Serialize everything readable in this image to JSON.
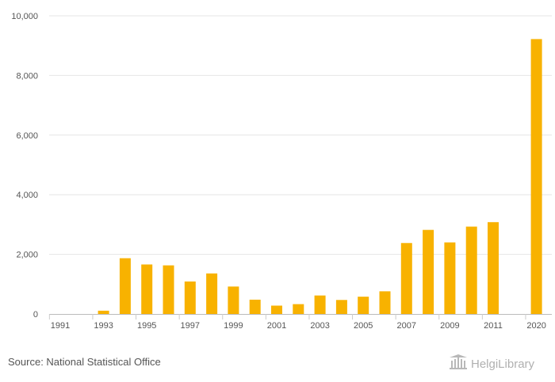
{
  "chart_data": {
    "type": "bar",
    "title": "",
    "xlabel": "",
    "ylabel": "",
    "ylim": [
      0,
      10000
    ],
    "y_ticks": [
      0,
      2000,
      4000,
      6000,
      8000,
      10000
    ],
    "y_tick_labels": [
      "0",
      "2,000",
      "4,000",
      "6,000",
      "8,000",
      "10,000"
    ],
    "x_tick_labels": [
      "1991",
      "1993",
      "1995",
      "1997",
      "1999",
      "2001",
      "2003",
      "2005",
      "2007",
      "2009",
      "2011",
      "2020"
    ],
    "grid": true,
    "legend": "none",
    "bar_color": "#f8b200",
    "categories": [
      "1991",
      "1992",
      "1993",
      "1994",
      "1995",
      "1996",
      "1997",
      "1998",
      "1999",
      "2000",
      "2001",
      "2002",
      "2003",
      "2004",
      "2005",
      "2006",
      "2007",
      "2008",
      "2009",
      "2010",
      "2011",
      "2019",
      "2020"
    ],
    "values": [
      0,
      0,
      110,
      1870,
      1660,
      1630,
      1090,
      1360,
      920,
      480,
      280,
      330,
      620,
      470,
      580,
      760,
      2380,
      2820,
      2400,
      2930,
      3080,
      0,
      9220
    ]
  },
  "footer": {
    "source": "Source: National Statistical Office",
    "brand": "HelgiLibrary",
    "brand_icon": "library-building-icon"
  }
}
